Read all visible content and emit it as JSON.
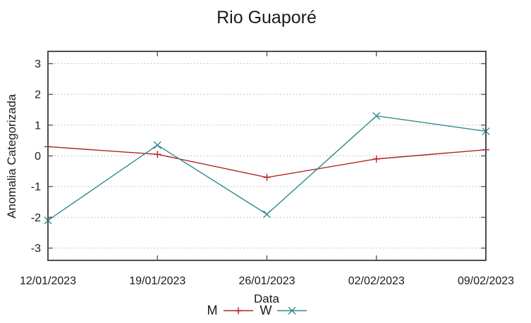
{
  "chart_data": {
    "type": "line",
    "title": "Rio Guaporé",
    "xlabel": "Data",
    "ylabel": "Anomalia Categorizada",
    "categories": [
      "12/01/2023",
      "19/01/2023",
      "26/01/2023",
      "02/02/2023",
      "09/02/2023"
    ],
    "series": [
      {
        "name": "M",
        "color": "#b22222",
        "marker": "plus",
        "values": [
          0.3,
          0.05,
          -0.7,
          -0.1,
          0.2
        ]
      },
      {
        "name": "W",
        "color": "#2e8b8b",
        "marker": "cross",
        "values": [
          -2.1,
          0.35,
          -1.9,
          1.3,
          0.8
        ]
      }
    ],
    "yticks": [
      -3,
      -2,
      -1,
      0,
      1,
      2,
      3
    ],
    "ylim": [
      -3.4,
      3.4
    ],
    "grid": "horizontal-dotted",
    "legend_position": "bottom-center",
    "colors": {
      "border": "#4d4d4d",
      "grid": "#b3b3b3",
      "text": "#1a1a1a"
    }
  }
}
